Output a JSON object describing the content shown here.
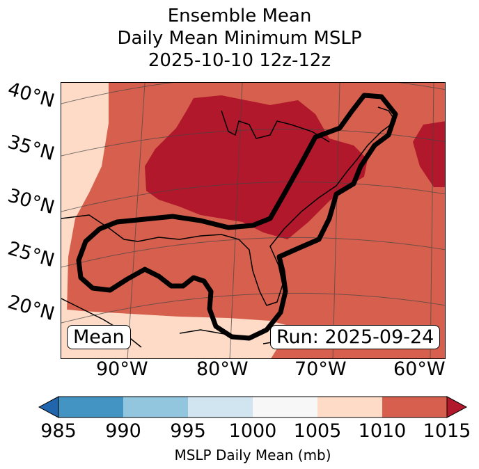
{
  "title": {
    "line1": "Ensemble Mean",
    "line2": "Daily Mean Minimum MSLP",
    "line3": "2025-10-10 12z-12z"
  },
  "colors": {
    "c985": "#2166ac",
    "c990": "#4393c3",
    "c995": "#92c5de",
    "c1000": "#d1e5f0",
    "c1005": "#f7f7f7",
    "c1010": "#fddbc7",
    "c1015": "#d6604d",
    "over": "#b2182b",
    "coast": "#000000",
    "outline": "#000000"
  },
  "map": {
    "lat_labels": [
      "40°N",
      "35°N",
      "30°N",
      "25°N",
      "20°N"
    ],
    "lon_labels": [
      "90°W",
      "80°W",
      "70°W",
      "60°W"
    ],
    "mean_label": "Mean",
    "run_label": "Run: 2025-09-24"
  },
  "colorbar": {
    "ticks": [
      "985",
      "990",
      "995",
      "1000",
      "1005",
      "1010",
      "1015"
    ],
    "label": "MSLP Daily Mean (mb)"
  }
}
